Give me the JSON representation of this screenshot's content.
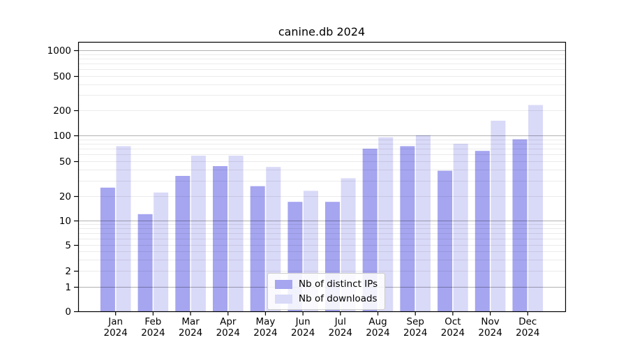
{
  "title": "canine.db 2024",
  "legend": {
    "position": "lower center",
    "entries": [
      {
        "label": "Nb of distinct IPs",
        "color": "#a5a5f0"
      },
      {
        "label": "Nb of downloads",
        "color": "#d9d9f8"
      }
    ]
  },
  "axes": {
    "y_tick_labels": [
      "0",
      "1",
      "2",
      "5",
      "10",
      "20",
      "50",
      "100",
      "200",
      "500",
      "1000"
    ],
    "x_tick_year": "2024"
  },
  "chart_data": {
    "type": "bar",
    "title": "canine.db 2024",
    "categories": [
      "Jan",
      "Feb",
      "Mar",
      "Apr",
      "May",
      "Jun",
      "Jul",
      "Aug",
      "Sep",
      "Oct",
      "Nov",
      "Dec"
    ],
    "year": "2024",
    "series": [
      {
        "name": "Nb of distinct IPs",
        "color": "#a5a5f0",
        "values": [
          25,
          12,
          34,
          44,
          26,
          17,
          17,
          70,
          75,
          39,
          66,
          90
        ]
      },
      {
        "name": "Nb of downloads",
        "color": "#d9d9f8",
        "values": [
          75,
          22,
          58,
          58,
          43,
          23,
          32,
          95,
          101,
          80,
          150,
          230
        ]
      }
    ],
    "xlabel": "",
    "ylabel": "",
    "yscale": "symlog",
    "y_ticks": [
      0,
      1,
      2,
      5,
      10,
      20,
      50,
      100,
      200,
      500,
      1000
    ],
    "ylim": [
      0,
      1200
    ],
    "grid": true,
    "legend_position": "lower center"
  }
}
